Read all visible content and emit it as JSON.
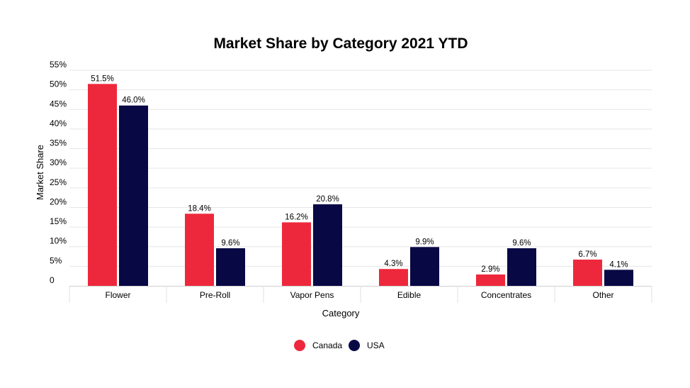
{
  "chart_data": {
    "type": "bar",
    "title": "Market Share by Category 2021 YTD",
    "xlabel": "Category",
    "ylabel": "Market Share",
    "categories": [
      "Flower",
      "Pre-Roll",
      "Vapor Pens",
      "Edible",
      "Concentrates",
      "Other"
    ],
    "series": [
      {
        "name": "Canada",
        "color": "#ee283c",
        "values": [
          51.5,
          18.4,
          16.2,
          4.3,
          2.9,
          6.7
        ],
        "labels": [
          "51.5%",
          "18.4%",
          "16.2%",
          "4.3%",
          "2.9%",
          "6.7%"
        ]
      },
      {
        "name": "USA",
        "color": "#080845",
        "values": [
          46.0,
          9.6,
          20.8,
          9.9,
          9.6,
          4.1
        ],
        "labels": [
          "46.0%",
          "9.6%",
          "20.8%",
          "9.9%",
          "9.6%",
          "4.1%"
        ]
      }
    ],
    "ylim": [
      0,
      55
    ],
    "yticks": [
      0,
      5,
      10,
      15,
      20,
      25,
      30,
      35,
      40,
      45,
      50,
      55
    ],
    "ytick_labels": [
      "0",
      "5%",
      "10%",
      "15%",
      "20%",
      "25%",
      "30%",
      "35%",
      "40%",
      "45%",
      "50%",
      "55%"
    ],
    "grid": true,
    "legend_position": "bottom-center",
    "gridline_color": "#e6e6e6"
  }
}
